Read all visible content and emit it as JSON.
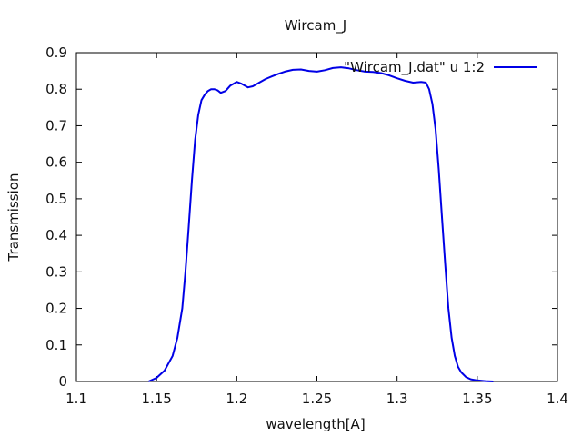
{
  "chart_data": {
    "type": "line",
    "title": "Wircam_J",
    "xlabel": "wavelength[A]",
    "ylabel": "Transmission",
    "xlim": [
      1.1,
      1.4
    ],
    "ylim": [
      0,
      0.9
    ],
    "xticks": [
      "1.1",
      "1.15",
      "1.2",
      "1.25",
      "1.3",
      "1.35",
      "1.4"
    ],
    "yticks": [
      "0",
      "0.1",
      "0.2",
      "0.3",
      "0.4",
      "0.5",
      "0.6",
      "0.7",
      "0.8",
      "0.9"
    ],
    "grid": false,
    "legend_position": "top-right",
    "series": [
      {
        "name": "\"Wircam_J.dat\" u 1:2",
        "color": "#0000e6",
        "x": [
          1.145,
          1.15,
          1.155,
          1.16,
          1.163,
          1.166,
          1.168,
          1.17,
          1.172,
          1.174,
          1.176,
          1.178,
          1.18,
          1.182,
          1.184,
          1.186,
          1.188,
          1.19,
          1.193,
          1.196,
          1.2,
          1.203,
          1.207,
          1.21,
          1.214,
          1.218,
          1.222,
          1.226,
          1.23,
          1.235,
          1.24,
          1.245,
          1.25,
          1.255,
          1.26,
          1.265,
          1.27,
          1.275,
          1.28,
          1.285,
          1.29,
          1.295,
          1.3,
          1.305,
          1.31,
          1.315,
          1.318,
          1.32,
          1.322,
          1.324,
          1.326,
          1.328,
          1.33,
          1.332,
          1.334,
          1.336,
          1.338,
          1.34,
          1.343,
          1.346,
          1.35,
          1.355,
          1.36
        ],
        "y": [
          0.0,
          0.01,
          0.03,
          0.07,
          0.12,
          0.2,
          0.3,
          0.42,
          0.55,
          0.66,
          0.73,
          0.77,
          0.785,
          0.795,
          0.8,
          0.8,
          0.797,
          0.79,
          0.795,
          0.81,
          0.82,
          0.815,
          0.805,
          0.808,
          0.818,
          0.828,
          0.835,
          0.842,
          0.848,
          0.853,
          0.854,
          0.85,
          0.848,
          0.852,
          0.858,
          0.86,
          0.857,
          0.852,
          0.848,
          0.847,
          0.844,
          0.838,
          0.83,
          0.823,
          0.818,
          0.82,
          0.818,
          0.8,
          0.76,
          0.69,
          0.58,
          0.45,
          0.32,
          0.2,
          0.12,
          0.07,
          0.04,
          0.025,
          0.012,
          0.006,
          0.003,
          0.001,
          0.0
        ]
      }
    ]
  }
}
